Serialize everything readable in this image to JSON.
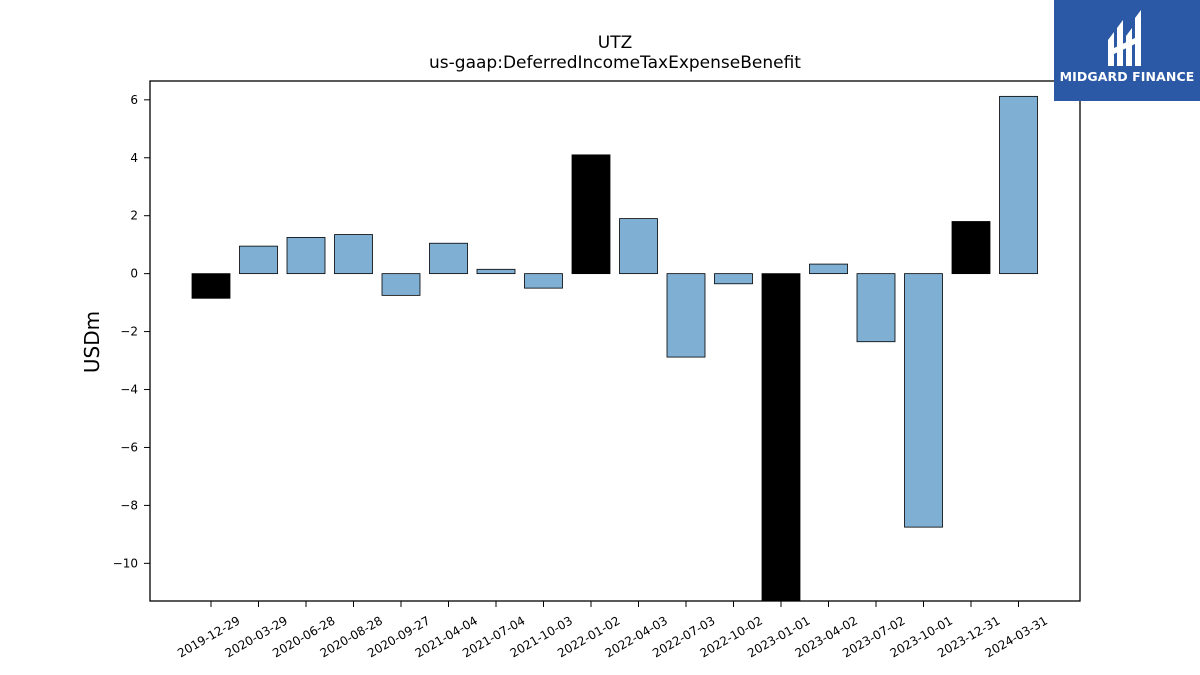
{
  "chart_data": {
    "type": "bar",
    "title": "UTZ",
    "subtitle": "us-gaap:DeferredIncomeTaxExpenseBenefit",
    "xlabel": "",
    "ylabel": "USDm",
    "ylim": [
      -11.3,
      6.65
    ],
    "yticks": [
      6,
      4,
      2,
      0,
      -2,
      -4,
      -6,
      -8,
      -10
    ],
    "ytick_labels": [
      "6",
      "4",
      "2",
      "0",
      "−2",
      "−4",
      "−6",
      "−8",
      "−10"
    ],
    "grid": false,
    "categories": [
      "2019-12-29",
      "2020-03-29",
      "2020-06-28",
      "2020-08-28",
      "2020-09-27",
      "2021-04-04",
      "2021-07-04",
      "2021-10-03",
      "2022-01-02",
      "2022-04-03",
      "2022-07-03",
      "2022-10-02",
      "2023-01-01",
      "2023-04-02",
      "2023-07-02",
      "2023-10-01",
      "2023-12-31",
      "2024-03-31"
    ],
    "values": [
      -0.85,
      0.95,
      1.25,
      1.35,
      -0.75,
      1.05,
      0.15,
      -0.5,
      4.1,
      1.9,
      -2.88,
      -0.35,
      -11.3,
      0.33,
      -2.35,
      -8.75,
      1.8,
      6.12
    ],
    "colors": [
      "#000000",
      "#7fafd3",
      "#7fafd3",
      "#7fafd3",
      "#7fafd3",
      "#7fafd3",
      "#7fafd3",
      "#7fafd3",
      "#000000",
      "#7fafd3",
      "#7fafd3",
      "#7fafd3",
      "#000000",
      "#7fafd3",
      "#7fafd3",
      "#7fafd3",
      "#000000",
      "#7fafd3"
    ]
  },
  "logo": {
    "text": "MIDGARD FINANCE",
    "background": "#2b59a6"
  }
}
